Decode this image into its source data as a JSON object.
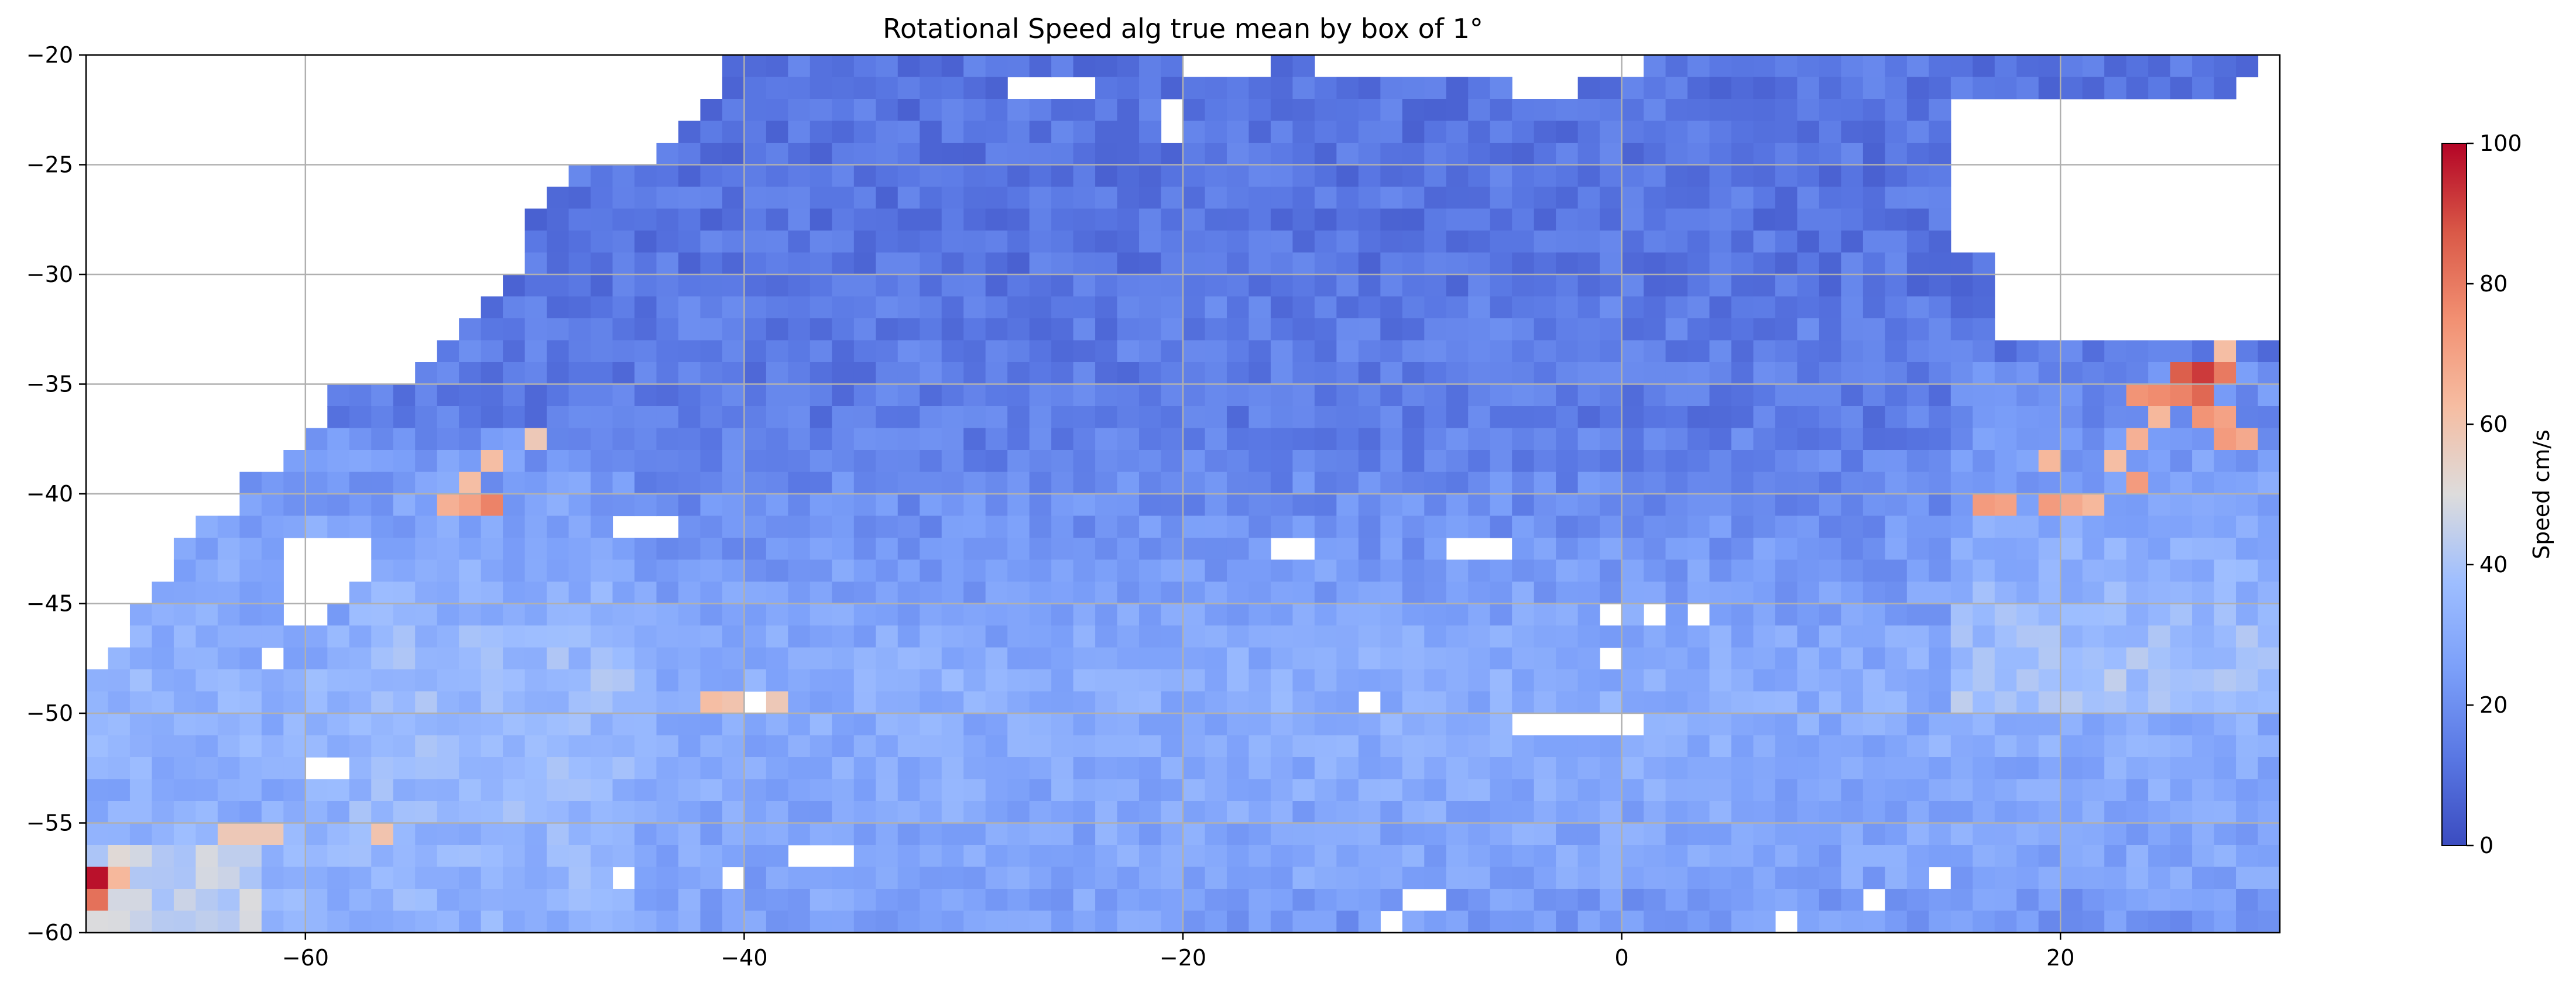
{
  "chart_data": {
    "type": "heatmap",
    "title": "Rotational Speed alg true mean by box of 1°",
    "xlabel": "",
    "ylabel": "",
    "xlim": [
      -70,
      30
    ],
    "ylim": [
      -60,
      -20
    ],
    "cell_size_deg": 1,
    "x_ticks": [
      -60,
      -40,
      -20,
      0,
      20
    ],
    "x_tick_labels": [
      "−60",
      "−40",
      "−20",
      "0",
      "20"
    ],
    "y_ticks": [
      -20,
      -25,
      -30,
      -35,
      -40,
      -45,
      -50,
      -55,
      -60
    ],
    "y_tick_labels": [
      "−20",
      "−25",
      "−30",
      "−35",
      "−40",
      "−45",
      "−50",
      "−55",
      "−60"
    ],
    "grid": true,
    "colormap": "coolwarm",
    "colorbar": {
      "label": "Speed cm/s",
      "min": 0,
      "max": 100,
      "ticks": [
        0,
        20,
        40,
        60,
        80,
        100
      ],
      "tick_labels": [
        "0",
        "20",
        "40",
        "60",
        "80",
        "100"
      ]
    },
    "coverage_by_latitude_band": [
      {
        "lat": [
          -21,
          -20
        ],
        "lon": [
          -41,
          29
        ]
      },
      {
        "lat": [
          -22,
          -21
        ],
        "lon": [
          -41,
          28
        ]
      },
      {
        "lat": [
          -23,
          -22
        ],
        "lon": [
          -42,
          15
        ]
      },
      {
        "lat": [
          -24,
          -23
        ],
        "lon": [
          -43,
          15
        ]
      },
      {
        "lat": [
          -25,
          -24
        ],
        "lon": [
          -44,
          15
        ]
      },
      {
        "lat": [
          -26,
          -25
        ],
        "lon": [
          -48,
          15
        ]
      },
      {
        "lat": [
          -27,
          -26
        ],
        "lon": [
          -49,
          15
        ]
      },
      {
        "lat": [
          -28,
          -27
        ],
        "lon": [
          -50,
          15
        ]
      },
      {
        "lat": [
          -29,
          -28
        ],
        "lon": [
          -50,
          15
        ]
      },
      {
        "lat": [
          -30,
          -29
        ],
        "lon": [
          -50,
          17
        ]
      },
      {
        "lat": [
          -31,
          -30
        ],
        "lon": [
          -51,
          17
        ]
      },
      {
        "lat": [
          -32,
          -31
        ],
        "lon": [
          -52,
          17
        ]
      },
      {
        "lat": [
          -33,
          -32
        ],
        "lon": [
          -53,
          17
        ]
      },
      {
        "lat": [
          -34,
          -33
        ],
        "lon": [
          -54,
          30
        ]
      },
      {
        "lat": [
          -35,
          -34
        ],
        "lon": [
          -55,
          30
        ]
      },
      {
        "lat": [
          -36,
          -35
        ],
        "lon": [
          -59,
          30
        ]
      },
      {
        "lat": [
          -37,
          -36
        ],
        "lon": [
          -59,
          30
        ]
      },
      {
        "lat": [
          -38,
          -37
        ],
        "lon": [
          -60,
          30
        ]
      },
      {
        "lat": [
          -39,
          -38
        ],
        "lon": [
          -61,
          30
        ]
      },
      {
        "lat": [
          -40,
          -39
        ],
        "lon": [
          -63,
          30
        ]
      },
      {
        "lat": [
          -41,
          -40
        ],
        "lon": [
          -63,
          30
        ]
      },
      {
        "lat": [
          -42,
          -41
        ],
        "lon": [
          -65,
          30
        ]
      },
      {
        "lat": [
          -43,
          -42
        ],
        "lon": [
          -66,
          30
        ]
      },
      {
        "lat": [
          -44,
          -43
        ],
        "lon": [
          -66,
          30
        ]
      },
      {
        "lat": [
          -45,
          -44
        ],
        "lon": [
          -67,
          30
        ]
      },
      {
        "lat": [
          -46,
          -45
        ],
        "lon": [
          -68,
          30
        ]
      },
      {
        "lat": [
          -47,
          -46
        ],
        "lon": [
          -68,
          30
        ]
      },
      {
        "lat": [
          -48,
          -47
        ],
        "lon": [
          -69,
          30
        ]
      },
      {
        "lat": [
          -49,
          -48
        ],
        "lon": [
          -70,
          30
        ]
      },
      {
        "lat": [
          -50,
          -49
        ],
        "lon": [
          -70,
          30
        ]
      },
      {
        "lat": [
          -51,
          -50
        ],
        "lon": [
          -70,
          30
        ]
      },
      {
        "lat": [
          -52,
          -51
        ],
        "lon": [
          -70,
          30
        ]
      },
      {
        "lat": [
          -53,
          -52
        ],
        "lon": [
          -70,
          30
        ]
      },
      {
        "lat": [
          -54,
          -53
        ],
        "lon": [
          -70,
          30
        ]
      },
      {
        "lat": [
          -55,
          -54
        ],
        "lon": [
          -70,
          30
        ]
      },
      {
        "lat": [
          -56,
          -55
        ],
        "lon": [
          -70,
          30
        ]
      },
      {
        "lat": [
          -57,
          -56
        ],
        "lon": [
          -70,
          30
        ]
      },
      {
        "lat": [
          -58,
          -57
        ],
        "lon": [
          -70,
          30
        ]
      },
      {
        "lat": [
          -59,
          -58
        ],
        "lon": [
          -70,
          30
        ]
      },
      {
        "lat": [
          -60,
          -59
        ],
        "lon": [
          -70,
          30
        ]
      }
    ],
    "missing_boxes": [
      [
        -28,
        -21
      ],
      [
        -27,
        -21
      ],
      [
        -26,
        -21
      ],
      [
        -25,
        -21
      ],
      [
        -21,
        -22
      ],
      [
        -21,
        -23
      ],
      [
        -20,
        -20
      ],
      [
        -19,
        -20
      ],
      [
        -18,
        -20
      ],
      [
        -17,
        -20
      ],
      [
        -14,
        -20
      ],
      [
        -13,
        -20
      ],
      [
        -12,
        -20
      ],
      [
        -11,
        -20
      ],
      [
        -10,
        -20
      ],
      [
        -9,
        -20
      ],
      [
        -8,
        -20
      ],
      [
        -7,
        -20
      ],
      [
        -6,
        -20
      ],
      [
        -5,
        -20
      ],
      [
        -4,
        -20
      ],
      [
        -3,
        -20
      ],
      [
        -2,
        -20
      ],
      [
        -1,
        -20
      ],
      [
        0,
        -20
      ],
      [
        -5,
        -21
      ],
      [
        -4,
        -21
      ],
      [
        -3,
        -21
      ],
      [
        -46,
        -41
      ],
      [
        -45,
        -41
      ],
      [
        -44,
        -41
      ],
      [
        -16,
        -42
      ],
      [
        -15,
        -42
      ],
      [
        -8,
        -42
      ],
      [
        -7,
        -42
      ],
      [
        -6,
        -42
      ],
      [
        -61,
        -42
      ],
      [
        -60,
        -42
      ],
      [
        -59,
        -42
      ],
      [
        -58,
        -42
      ],
      [
        -61,
        -43
      ],
      [
        -60,
        -43
      ],
      [
        -59,
        -43
      ],
      [
        -58,
        -43
      ],
      [
        -61,
        -44
      ],
      [
        -60,
        -44
      ],
      [
        -59,
        -44
      ],
      [
        -61,
        -45
      ],
      [
        -60,
        -45
      ],
      [
        -1,
        -45
      ],
      [
        1,
        -45
      ],
      [
        3,
        -45
      ],
      [
        -62,
        -47
      ],
      [
        -1,
        -47
      ],
      [
        -5,
        -50
      ],
      [
        -4,
        -50
      ],
      [
        -3,
        -50
      ],
      [
        -2,
        -50
      ],
      [
        -1,
        -50
      ],
      [
        0,
        -50
      ],
      [
        -40,
        -49
      ],
      [
        -12,
        -49
      ],
      [
        -60,
        -52
      ],
      [
        -59,
        -52
      ],
      [
        -38,
        -56
      ],
      [
        -37,
        -56
      ],
      [
        -36,
        -56
      ],
      [
        -46,
        -57
      ],
      [
        -41,
        -57
      ],
      [
        -10,
        -58
      ],
      [
        -9,
        -58
      ],
      [
        11,
        -58
      ],
      [
        14,
        -57
      ],
      [
        -4,
        -60
      ],
      [
        -3,
        -60
      ],
      [
        -2,
        -60
      ],
      [
        -11,
        -59
      ],
      [
        7,
        -59
      ]
    ],
    "high_speed_boxes": [
      {
        "lon": -70,
        "lat": -58,
        "value": 98
      },
      {
        "lon": -70,
        "lat": -59,
        "value": 82
      },
      {
        "lon": -69,
        "lat": -58,
        "value": 64
      },
      {
        "lon": -52,
        "lat": -41,
        "value": 78
      },
      {
        "lon": -54,
        "lat": -41,
        "value": 66
      },
      {
        "lon": -53,
        "lat": -41,
        "value": 70
      },
      {
        "lon": -52,
        "lat": -39,
        "value": 62
      },
      {
        "lon": -53,
        "lat": -40,
        "value": 62
      },
      {
        "lon": -50,
        "lat": -38,
        "value": 58
      },
      {
        "lon": -42,
        "lat": -50,
        "value": 62
      },
      {
        "lon": -41,
        "lat": -50,
        "value": 60
      },
      {
        "lon": -40,
        "lat": -50,
        "value": 66
      },
      {
        "lon": -39,
        "lat": -50,
        "value": 58
      },
      {
        "lon": -57,
        "lat": -56,
        "value": 60
      },
      {
        "lon": -64,
        "lat": -56,
        "value": 58
      },
      {
        "lon": -63,
        "lat": -56,
        "value": 58
      },
      {
        "lon": -62,
        "lat": -56,
        "value": 58
      },
      {
        "lon": 16,
        "lat": -41,
        "value": 72
      },
      {
        "lon": 17,
        "lat": -41,
        "value": 70
      },
      {
        "lon": 19,
        "lat": -41,
        "value": 72
      },
      {
        "lon": 20,
        "lat": -41,
        "value": 68
      },
      {
        "lon": 21,
        "lat": -41,
        "value": 64
      },
      {
        "lon": 19,
        "lat": -39,
        "value": 64
      },
      {
        "lon": 22,
        "lat": -39,
        "value": 62
      },
      {
        "lon": 23,
        "lat": -40,
        "value": 72
      },
      {
        "lon": 23,
        "lat": -38,
        "value": 66
      },
      {
        "lon": 24,
        "lat": -37,
        "value": 64
      },
      {
        "lon": 25,
        "lat": -36,
        "value": 78
      },
      {
        "lon": 23,
        "lat": -36,
        "value": 74
      },
      {
        "lon": 26,
        "lat": -35,
        "value": 92
      },
      {
        "lon": 25,
        "lat": -35,
        "value": 86
      },
      {
        "lon": 27,
        "lat": -35,
        "value": 80
      },
      {
        "lon": 26,
        "lat": -36,
        "value": 84
      },
      {
        "lon": 24,
        "lat": -36,
        "value": 76
      },
      {
        "lon": 26,
        "lat": -37,
        "value": 74
      },
      {
        "lon": 27,
        "lat": -37,
        "value": 70
      },
      {
        "lon": 27,
        "lat": -38,
        "value": 72
      },
      {
        "lon": 28,
        "lat": -38,
        "value": 68
      },
      {
        "lon": 27,
        "lat": -34,
        "value": 62
      },
      {
        "lon": 28,
        "lat": -33,
        "value": 58
      },
      {
        "lon": 29,
        "lat": -33,
        "value": 58
      }
    ]
  }
}
